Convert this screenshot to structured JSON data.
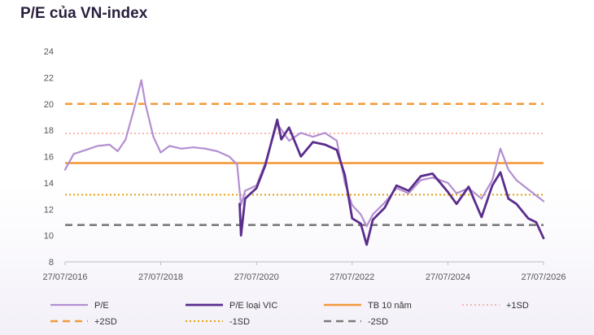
{
  "title": "P/E của VN-index",
  "chart_data": {
    "type": "line",
    "title": "P/E của VN-index",
    "xlabel": "",
    "ylabel": "",
    "ylim": [
      8,
      24
    ],
    "yticks": [
      8,
      10,
      12,
      14,
      16,
      18,
      20,
      22,
      24
    ],
    "xlim": [
      "2016-07-27",
      "2026-07-27"
    ],
    "xticks": [
      "27/07/2016",
      "27/07/2018",
      "27/07/2020",
      "27/07/2022",
      "27/07/2024",
      "27/07/2026"
    ],
    "grid": false,
    "legend_position": "bottom",
    "series": [
      {
        "name": "P/E",
        "color": "#b38fd1",
        "x": [
          "2016-07-27",
          "2016-10-01",
          "2017-01-01",
          "2017-04-01",
          "2017-07-01",
          "2017-09-01",
          "2017-11-01",
          "2018-01-01",
          "2018-03-01",
          "2018-04-01",
          "2018-06-01",
          "2018-07-27",
          "2018-10-01",
          "2019-01-01",
          "2019-04-01",
          "2019-07-01",
          "2019-10-01",
          "2020-01-01",
          "2020-03-01",
          "2020-03-31",
          "2020-05-01",
          "2020-07-27",
          "2020-10-01",
          "2021-01-01",
          "2021-04-01",
          "2021-07-01",
          "2021-10-01",
          "2022-01-01",
          "2022-04-01",
          "2022-06-01",
          "2022-07-27",
          "2022-10-01",
          "2022-11-15",
          "2023-01-01",
          "2023-04-01",
          "2023-07-01",
          "2023-10-01",
          "2024-01-01",
          "2024-04-01",
          "2024-07-27",
          "2024-10-01",
          "2025-01-01",
          "2025-04-10",
          "2025-07-01",
          "2025-09-01",
          "2025-11-01",
          "2026-01-01",
          "2026-04-01",
          "2026-07-27"
        ],
        "y": [
          15.0,
          16.2,
          16.5,
          16.8,
          16.9,
          16.4,
          17.3,
          19.5,
          21.8,
          20.0,
          17.5,
          16.3,
          16.8,
          16.6,
          16.7,
          16.6,
          16.4,
          16.0,
          15.4,
          12.3,
          13.4,
          13.8,
          15.5,
          18.5,
          17.2,
          17.8,
          17.5,
          17.8,
          17.2,
          14.0,
          12.3,
          11.6,
          10.7,
          11.6,
          12.5,
          13.6,
          13.2,
          14.2,
          14.4,
          14.0,
          13.2,
          13.6,
          12.8,
          14.2,
          16.6,
          15.0,
          14.2,
          13.5,
          12.6
        ]
      },
      {
        "name": "P/E loại VIC",
        "color": "#5a2d8c",
        "x": [
          "2020-03-20",
          "2020-03-31",
          "2020-05-01",
          "2020-07-27",
          "2020-10-01",
          "2021-01-01",
          "2021-02-01",
          "2021-04-01",
          "2021-07-01",
          "2021-10-01",
          "2022-01-01",
          "2022-04-01",
          "2022-06-01",
          "2022-07-27",
          "2022-10-01",
          "2022-11-15",
          "2023-01-01",
          "2023-04-01",
          "2023-07-01",
          "2023-10-01",
          "2024-01-01",
          "2024-04-01",
          "2024-07-27",
          "2024-10-01",
          "2025-01-01",
          "2025-04-10",
          "2025-07-01",
          "2025-09-01",
          "2025-11-01",
          "2026-01-01",
          "2026-04-01",
          "2026-06-01",
          "2026-07-27"
        ],
        "y": [
          12.4,
          10.0,
          12.8,
          13.6,
          15.3,
          18.8,
          17.3,
          18.2,
          16.0,
          17.1,
          16.9,
          16.5,
          14.6,
          11.3,
          10.9,
          9.3,
          11.2,
          12.1,
          13.8,
          13.4,
          14.5,
          14.7,
          13.3,
          12.4,
          13.7,
          11.4,
          13.8,
          14.8,
          12.8,
          12.4,
          11.3,
          11.0,
          9.8
        ]
      }
    ],
    "reference_lines": [
      {
        "name": "TB 10 năm",
        "value": 15.5,
        "color": "#f39a3a",
        "style": "solid"
      },
      {
        "name": "+1SD",
        "value": 17.75,
        "color": "#f7b6ae",
        "style": "dotted"
      },
      {
        "name": "+2SD",
        "value": 20.0,
        "color": "#f39a3a",
        "style": "dashed"
      },
      {
        "name": "-1SD",
        "value": 13.1,
        "color": "#e0a010",
        "style": "dotted"
      },
      {
        "name": "-2SD",
        "value": 10.8,
        "color": "#7a7a7a",
        "style": "dashed"
      }
    ]
  }
}
